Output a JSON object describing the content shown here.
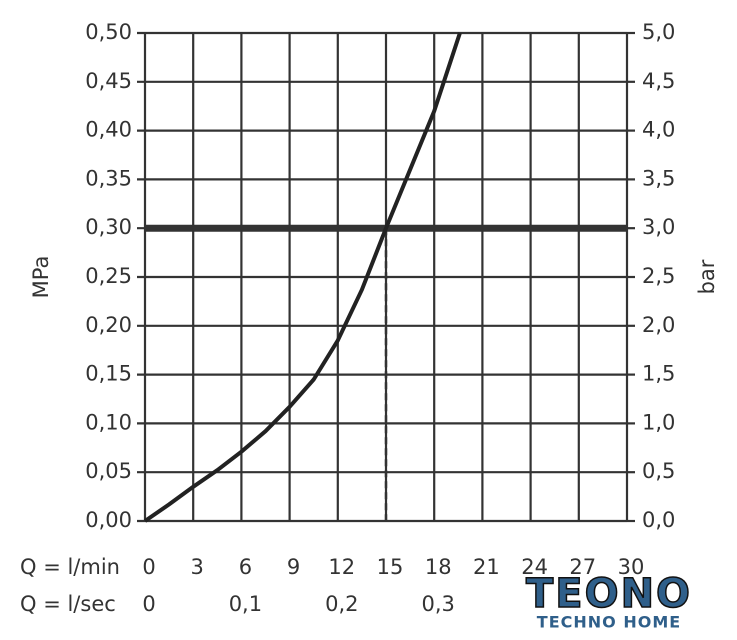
{
  "chart_data": {
    "type": "line",
    "xlabel": "Q = l/min",
    "x2label": "Q = l/sec",
    "ylabel": "MPa",
    "y2label": "bar",
    "x": [
      0,
      1.5,
      3,
      4.5,
      6,
      7.5,
      9,
      10.5,
      12,
      13.5,
      15,
      16.5,
      18,
      19.6
    ],
    "values": [
      0,
      0.017,
      0.035,
      0.052,
      0.071,
      0.092,
      0.117,
      0.145,
      0.185,
      0.237,
      0.3,
      0.36,
      0.42,
      0.5
    ],
    "color": "#222",
    "xlim": [
      0,
      30
    ],
    "xticks": [
      0,
      3,
      6,
      9,
      12,
      15,
      18,
      21,
      24,
      27,
      30
    ],
    "x2lim": [
      0,
      0.5
    ],
    "x2ticks": [
      0,
      {
        "value": 0.1,
        "label": "0,1"
      },
      {
        "value": 0.2,
        "label": "0,2"
      },
      {
        "value": 0.3,
        "label": "0,3"
      }
    ],
    "ylim": [
      0,
      0.5
    ],
    "yticks": [
      {
        "value": 0,
        "label": "0,00"
      },
      {
        "value": 0.05,
        "label": "0,05"
      },
      {
        "value": 0.1,
        "label": "0,10"
      },
      {
        "value": 0.15,
        "label": "0,15"
      },
      {
        "value": 0.2,
        "label": "0,20"
      },
      {
        "value": 0.25,
        "label": "0,25"
      },
      {
        "value": 0.3,
        "label": "0,30"
      },
      {
        "value": 0.35,
        "label": "0,35"
      },
      {
        "value": 0.4,
        "label": "0,40"
      },
      {
        "value": 0.45,
        "label": "0,45"
      },
      {
        "value": 0.5,
        "label": "0,50"
      }
    ],
    "y2lim": [
      0,
      5
    ],
    "y2ticks": [
      {
        "value": 0,
        "label": "0,0"
      },
      {
        "value": 0.5,
        "label": "0,5"
      },
      {
        "value": 1,
        "label": "1,0"
      },
      {
        "value": 1.5,
        "label": "1,5"
      },
      {
        "value": 2,
        "label": "2,0"
      },
      {
        "value": 2.5,
        "label": "2,5"
      },
      {
        "value": 3,
        "label": "3,0"
      },
      {
        "value": 3.5,
        "label": "3,5"
      },
      {
        "value": 4,
        "label": "4,0"
      },
      {
        "value": 4.5,
        "label": "4,5"
      },
      {
        "value": 5,
        "label": "5,0"
      }
    ],
    "grid": true,
    "reference": {
      "y": 0.3,
      "x": 15
    }
  },
  "logo": {
    "title": "TEONO",
    "subtitle": "TECHNO HOME"
  }
}
